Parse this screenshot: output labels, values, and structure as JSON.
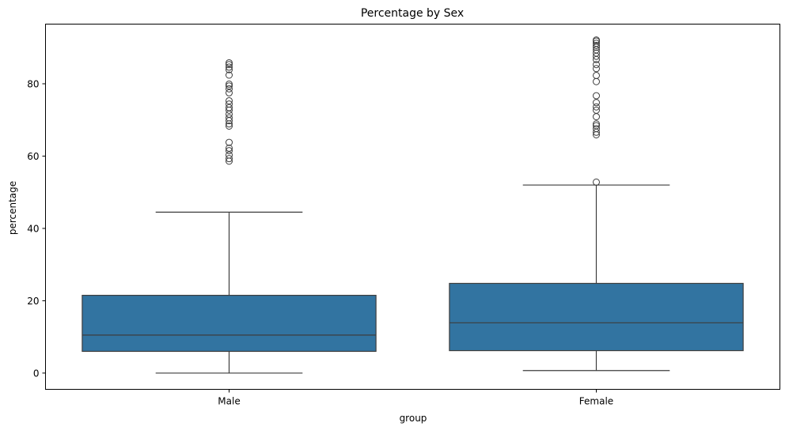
{
  "chart_data": {
    "type": "box",
    "title": "Percentage by Sex",
    "xlabel": "group",
    "ylabel": "percentage",
    "categories": [
      "Male",
      "Female"
    ],
    "ylim": [
      -4.5,
      96.5
    ],
    "yticks": [
      0,
      20,
      40,
      60,
      80
    ],
    "grid": false,
    "legend": "none",
    "box_color": "#3274a1",
    "line_color": "#3d3d3d",
    "boxes": [
      {
        "group": "Male",
        "whisker_low": 0.0,
        "q1": 6.0,
        "median": 10.5,
        "q3": 21.5,
        "whisker_high": 44.5,
        "outliers": [
          58.6,
          59.3,
          60.3,
          61.5,
          62.2,
          63.8,
          68.3,
          68.9,
          69.8,
          70.6,
          71.6,
          72.7,
          73.4,
          74.4,
          75.3,
          77.5,
          78.6,
          79.4,
          79.9,
          82.4,
          83.9,
          84.6,
          85.3,
          85.8
        ]
      },
      {
        "group": "Female",
        "whisker_low": 0.7,
        "q1": 6.2,
        "median": 13.9,
        "q3": 24.8,
        "whisker_high": 52.0,
        "outliers": [
          52.8,
          65.9,
          66.6,
          67.6,
          68.4,
          68.9,
          70.9,
          72.7,
          73.6,
          74.8,
          76.7,
          80.6,
          82.3,
          84.2,
          85.3,
          86.7,
          87.6,
          88.5,
          89.4,
          90.1,
          90.6,
          91.2,
          91.8,
          92.1
        ]
      }
    ]
  }
}
